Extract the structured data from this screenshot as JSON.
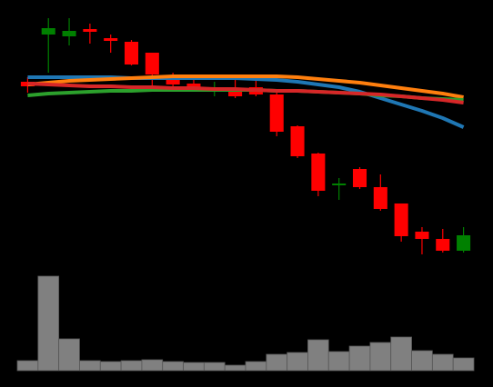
{
  "chart_data": {
    "type": "candlestick",
    "background": "#000000",
    "up_color": "#008000",
    "down_color": "#ff0000",
    "ylim": [
      0,
      300
    ],
    "open": [
      210,
      262,
      260,
      268,
      258,
      254,
      242,
      214,
      208,
      199,
      202,
      204,
      196,
      161,
      131,
      96,
      114,
      94,
      76,
      45,
      37,
      24
    ],
    "close": [
      205,
      269,
      266,
      265,
      255,
      229,
      218,
      207,
      203,
      201,
      194,
      196,
      155,
      128,
      90,
      98,
      94,
      70,
      40,
      37,
      24,
      41
    ],
    "high": [
      215,
      280,
      280,
      274,
      262,
      256,
      242,
      220,
      212,
      210,
      214,
      214,
      200,
      162,
      132,
      104,
      116,
      108,
      76,
      50,
      48,
      50
    ],
    "low": [
      198,
      220,
      250,
      252,
      242,
      228,
      205,
      205,
      200,
      194,
      192,
      194,
      150,
      126,
      84,
      80,
      92,
      68,
      34,
      20,
      22,
      22
    ],
    "moving_averages": [
      {
        "color": "#1f77b4",
        "values": [
          215,
          215,
          215,
          215,
          215,
          214,
          214,
          214,
          214,
          214,
          214,
          213,
          212,
          210,
          207,
          204,
          199,
          192,
          185,
          178,
          170,
          160
        ]
      },
      {
        "color": "#ff7f0e",
        "values": [
          207,
          209,
          211,
          212,
          213,
          214,
          215,
          216,
          216,
          216,
          216,
          216,
          216,
          215,
          213,
          211,
          209,
          206,
          203,
          200,
          197,
          193
        ]
      },
      {
        "color": "#2ca02c",
        "values": [
          195,
          197,
          198,
          199,
          200,
          200,
          201,
          201,
          201,
          201,
          201,
          201,
          200,
          200,
          199,
          198,
          197,
          195,
          194,
          192,
          191,
          190
        ]
      },
      {
        "color": "#d62728",
        "values": [
          208,
          207,
          206,
          205,
          205,
          204,
          204,
          203,
          203,
          202,
          202,
          201,
          200,
          200,
          199,
          198,
          197,
          196,
          194,
          192,
          190,
          187
        ]
      }
    ],
    "volume": {
      "color": "#808080",
      "ylim": [
        0,
        108
      ],
      "values": [
        11,
        104,
        35,
        11,
        10,
        11,
        12,
        10,
        9,
        9,
        6,
        10,
        18,
        20,
        34,
        21,
        27,
        31,
        37,
        22,
        18,
        14
      ]
    }
  }
}
